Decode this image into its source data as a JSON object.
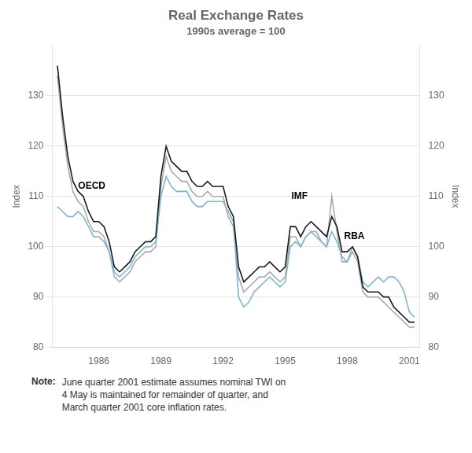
{
  "chart_data": {
    "type": "line",
    "title": "Real Exchange Rates",
    "subtitle": "1990s average = 100",
    "y_label": "Index",
    "y2_label": "Index",
    "x": [
      1984.0,
      1984.25,
      1984.5,
      1984.75,
      1985.0,
      1985.25,
      1985.5,
      1985.75,
      1986.0,
      1986.25,
      1986.5,
      1986.75,
      1987.0,
      1987.25,
      1987.5,
      1987.75,
      1988.0,
      1988.25,
      1988.5,
      1988.75,
      1989.0,
      1989.25,
      1989.5,
      1989.75,
      1990.0,
      1990.25,
      1990.5,
      1990.75,
      1991.0,
      1991.25,
      1991.5,
      1991.75,
      1992.0,
      1992.25,
      1992.5,
      1992.75,
      1993.0,
      1993.25,
      1993.5,
      1993.75,
      1994.0,
      1994.25,
      1994.5,
      1994.75,
      1995.0,
      1995.25,
      1995.5,
      1995.75,
      1996.0,
      1996.25,
      1996.5,
      1996.75,
      1997.0,
      1997.25,
      1997.5,
      1997.75,
      1998.0,
      1998.25,
      1998.5,
      1998.75,
      1999.0,
      1999.25,
      1999.5,
      1999.75,
      2000.0,
      2000.25,
      2000.5,
      2000.75,
      2001.0,
      2001.25
    ],
    "series": [
      {
        "name": "IMF",
        "color": "#aaaaaa",
        "values": [
          134,
          124,
          116,
          111,
          109,
          108,
          105,
          103,
          103,
          102,
          99,
          94,
          93,
          94,
          95,
          97,
          98,
          99,
          99,
          100,
          112,
          118,
          115,
          114,
          113,
          113,
          111,
          110,
          110,
          111,
          110,
          110,
          110,
          106,
          104,
          94,
          91,
          92,
          93,
          94,
          94,
          95,
          94,
          93,
          94,
          102,
          102,
          100,
          102,
          103,
          102,
          101,
          100,
          110,
          103,
          97,
          97,
          99,
          97,
          91,
          90,
          90,
          90,
          89,
          88,
          87,
          86,
          85,
          84,
          84
        ]
      },
      {
        "name": "RBA",
        "color": "#7ab8d4",
        "values": [
          108,
          107,
          106,
          106,
          107,
          106,
          104,
          102,
          102,
          101,
          99,
          95,
          94,
          95,
          96,
          98,
          99,
          100,
          100,
          101,
          110,
          114,
          112,
          111,
          111,
          111,
          109,
          108,
          108,
          109,
          109,
          109,
          109,
          107,
          105,
          90,
          88,
          89,
          91,
          92,
          93,
          94,
          93,
          92,
          93,
          100,
          101,
          100,
          102,
          103,
          103,
          101,
          100,
          103,
          101,
          98,
          97,
          100,
          98,
          93,
          92,
          93,
          94,
          93,
          94,
          94,
          93,
          91,
          87,
          86
        ]
      },
      {
        "name": "OECD",
        "color": "#1a1a1a",
        "values": [
          136,
          126,
          118,
          113,
          111,
          110,
          107,
          105,
          105,
          104,
          101,
          96,
          95,
          96,
          97,
          99,
          100,
          101,
          101,
          102,
          114,
          120,
          117,
          116,
          115,
          115,
          113,
          112,
          112,
          113,
          112,
          112,
          112,
          108,
          106,
          96,
          93,
          94,
          95,
          96,
          96,
          97,
          96,
          95,
          96,
          104,
          104,
          102,
          104,
          105,
          104,
          103,
          102,
          106,
          104,
          99,
          99,
          100,
          98,
          92,
          91,
          91,
          91,
          90,
          90,
          88,
          87,
          86,
          85,
          85
        ]
      }
    ],
    "xlim": [
      1983.75,
      2001.5
    ],
    "xticks": [
      1986,
      1989,
      1992,
      1995,
      1998,
      2001
    ],
    "ylim": [
      80,
      140
    ],
    "yticks": [
      80,
      90,
      100,
      110,
      120,
      130
    ],
    "y2lim": [
      80,
      140
    ],
    "y2ticks": [
      80,
      90,
      100,
      110,
      120,
      130
    ],
    "grid": "y",
    "annotations": [
      {
        "text": "OECD",
        "x": 1985.0,
        "y": 111.5
      },
      {
        "text": "IMF",
        "x": 1995.3,
        "y": 109.5
      },
      {
        "text": "RBA",
        "x": 1997.85,
        "y": 101.5
      }
    ],
    "note_label": "Note:",
    "note": "June quarter 2001 estimate assumes nominal TWI on\n4 May is maintained for remainder of quarter, and\nMarch quarter 2001 core inflation rates."
  }
}
